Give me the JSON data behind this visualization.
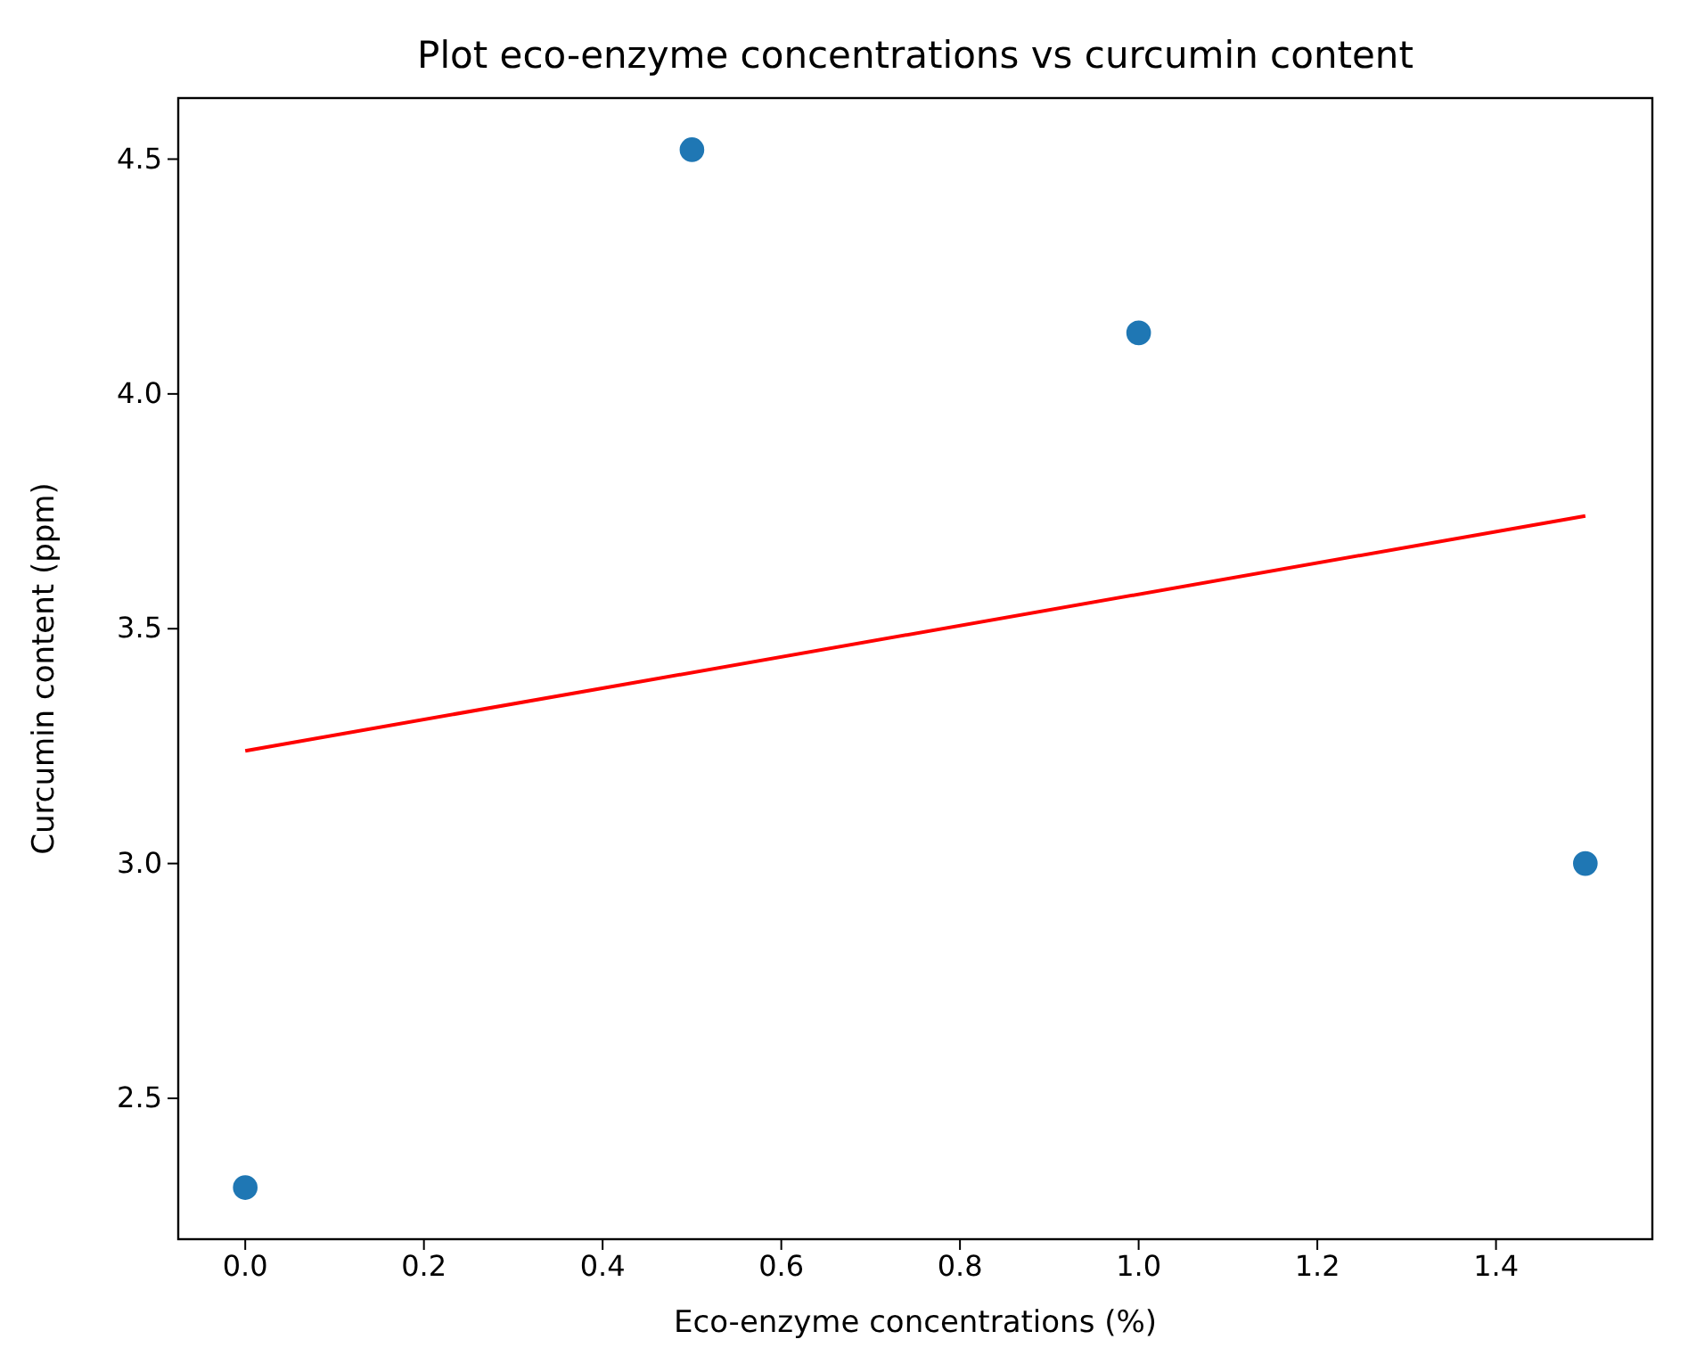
{
  "chart_data": {
    "type": "scatter",
    "title": "Plot eco-enzyme concentrations vs curcumin content",
    "xlabel": "Eco-enzyme concentrations (%)",
    "ylabel": "Curcumin content (ppm)",
    "x": [
      0,
      0.5,
      1.0,
      1.5
    ],
    "series": [
      {
        "color": "#1f77b4",
        "marker": "circle",
        "values": [
          2.31,
          4.52,
          4.13,
          3.0
        ]
      },
      {
        "type": "line",
        "color": "#ff0000",
        "x": [
          0,
          1.5
        ],
        "values": [
          3.24,
          3.74
        ]
      }
    ],
    "xlim": [
      -0.075,
      1.575
    ],
    "ylim": [
      2.2,
      4.63
    ],
    "xticks": [
      {
        "value": 0,
        "label": "0.0"
      },
      0.2,
      0.4,
      0.6,
      0.8,
      {
        "value": 1,
        "label": "1.0"
      },
      1.2,
      1.4
    ],
    "yticks": [
      2.5,
      {
        "value": 3,
        "label": "3.0"
      },
      3.5,
      {
        "value": 4,
        "label": "4.0"
      },
      4.5
    ],
    "grid": false
  }
}
